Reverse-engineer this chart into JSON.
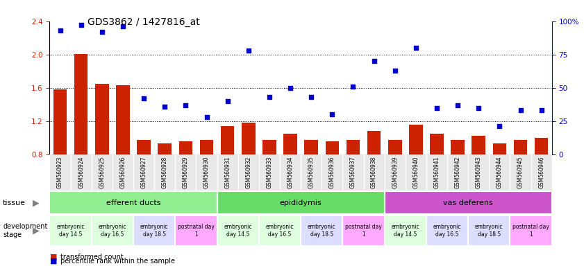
{
  "title": "GDS3862 / 1427816_at",
  "samples": [
    "GSM560923",
    "GSM560924",
    "GSM560925",
    "GSM560926",
    "GSM560927",
    "GSM560928",
    "GSM560929",
    "GSM560930",
    "GSM560931",
    "GSM560932",
    "GSM560933",
    "GSM560934",
    "GSM560935",
    "GSM560936",
    "GSM560937",
    "GSM560938",
    "GSM560939",
    "GSM560940",
    "GSM560941",
    "GSM560942",
    "GSM560943",
    "GSM560944",
    "GSM560945",
    "GSM560946"
  ],
  "transformed_count": [
    1.58,
    2.01,
    1.65,
    1.63,
    0.97,
    0.93,
    0.96,
    0.97,
    1.14,
    1.18,
    0.97,
    1.05,
    0.97,
    0.96,
    0.97,
    1.08,
    0.97,
    1.16,
    1.05,
    0.97,
    1.02,
    0.93,
    0.97,
    1.0
  ],
  "percentile_rank": [
    93,
    97,
    92,
    96,
    42,
    36,
    37,
    28,
    40,
    78,
    43,
    50,
    43,
    30,
    51,
    70,
    63,
    80,
    35,
    37,
    35,
    21,
    33,
    33
  ],
  "ylim_left": [
    0.8,
    2.4
  ],
  "ylim_right": [
    0,
    100
  ],
  "yticks_left": [
    0.8,
    1.2,
    1.6,
    2.0,
    2.4
  ],
  "yticks_right": [
    0,
    25,
    50,
    75,
    100
  ],
  "hlines": [
    1.2,
    1.6,
    2.0
  ],
  "bar_color": "#cc2200",
  "scatter_color": "#0000cc",
  "bg_color": "#e8e8e8",
  "tissue_groups": [
    {
      "label": "efferent ducts",
      "start": 0,
      "end": 7,
      "color": "#90ee90"
    },
    {
      "label": "epididymis",
      "start": 8,
      "end": 15,
      "color": "#66dd66"
    },
    {
      "label": "vas deferens",
      "start": 16,
      "end": 23,
      "color": "#cc55cc"
    }
  ],
  "dev_stage_groups": [
    {
      "label": "embryonic\nday 14.5",
      "start": 0,
      "end": 1,
      "color": "#ddffdd"
    },
    {
      "label": "embryonic\nday 16.5",
      "start": 2,
      "end": 3,
      "color": "#ddffdd"
    },
    {
      "label": "embryonic\nday 18.5",
      "start": 4,
      "end": 5,
      "color": "#ddddff"
    },
    {
      "label": "postnatal day\n1",
      "start": 6,
      "end": 7,
      "color": "#ffaaff"
    },
    {
      "label": "embryonic\nday 14.5",
      "start": 8,
      "end": 9,
      "color": "#ddffdd"
    },
    {
      "label": "embryonic\nday 16.5",
      "start": 10,
      "end": 11,
      "color": "#ddffdd"
    },
    {
      "label": "embryonic\nday 18.5",
      "start": 12,
      "end": 13,
      "color": "#ddddff"
    },
    {
      "label": "postnatal day\n1",
      "start": 14,
      "end": 15,
      "color": "#ffaaff"
    },
    {
      "label": "embryonic\nday 14.5",
      "start": 16,
      "end": 17,
      "color": "#ddffdd"
    },
    {
      "label": "embryonic\nday 16.5",
      "start": 18,
      "end": 19,
      "color": "#ddddff"
    },
    {
      "label": "embryonic\nday 18.5",
      "start": 20,
      "end": 21,
      "color": "#ddddff"
    },
    {
      "label": "postnatal day\n1",
      "start": 22,
      "end": 23,
      "color": "#ffaaff"
    }
  ]
}
